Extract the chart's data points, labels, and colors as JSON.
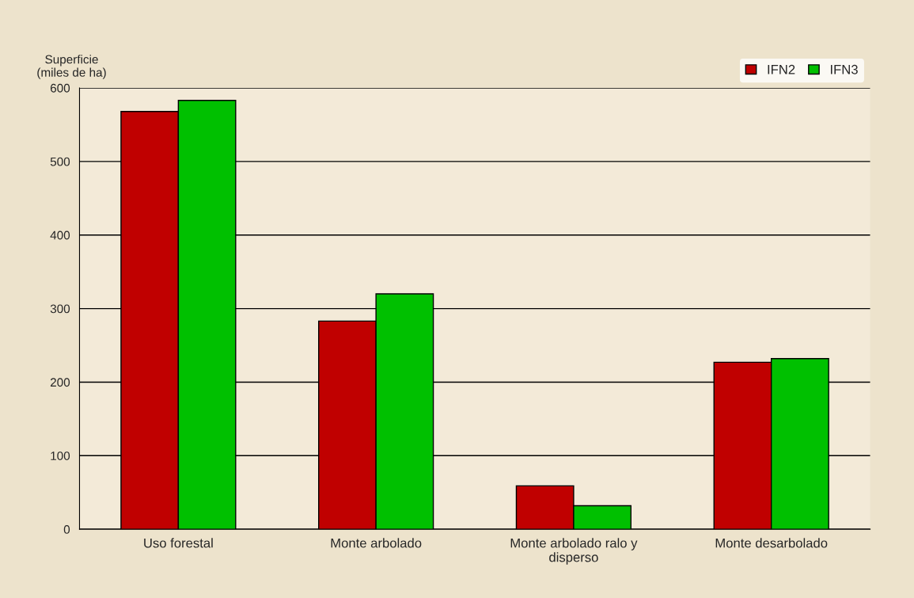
{
  "chart_data": {
    "type": "bar",
    "ylabel": "Superficie\n(miles de ha)",
    "categories": [
      "Uso forestal",
      "Monte arbolado",
      "Monte arbolado ralo y\ndisperso",
      "Monte desarbolado"
    ],
    "series": [
      {
        "name": "IFN2",
        "color": "#c00000",
        "values": [
          568,
          283,
          59,
          227
        ]
      },
      {
        "name": "IFN3",
        "color": "#00c000",
        "values": [
          583,
          320,
          32,
          232
        ]
      }
    ],
    "ylim": [
      0,
      600
    ],
    "yticks": [
      0,
      100,
      200,
      300,
      400,
      500,
      600
    ],
    "grid": "y",
    "legend": "top right"
  }
}
